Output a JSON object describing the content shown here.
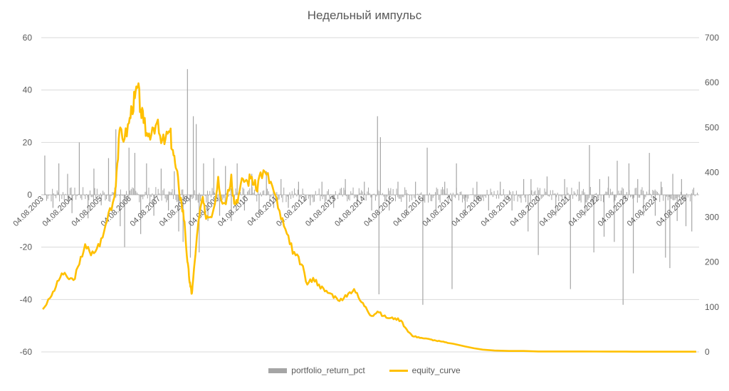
{
  "chart_data": {
    "type": "bar+line",
    "title": "Недельный импульс",
    "left_axis": {
      "min": -60,
      "max": 60,
      "step": 20,
      "ticks": [
        "60",
        "40",
        "20",
        "0",
        "-20",
        "-40",
        "-60"
      ]
    },
    "right_axis": {
      "min": 0,
      "max": 700,
      "step": 100,
      "ticks": [
        "700",
        "600",
        "500",
        "400",
        "300",
        "200",
        "100",
        "0"
      ]
    },
    "x_labels": [
      "04.08.2003",
      "04.08.2004",
      "04.08.2005",
      "04.08.2006",
      "04.08.2007",
      "04.08.2008",
      "04.08.2009",
      "04.08.2010",
      "04.08.2011",
      "04.08.2012",
      "04.08.2013",
      "04.08.2014",
      "04.08.2015",
      "04.08.2016",
      "04.08.2017",
      "04.08.2018",
      "04.08.2019",
      "04.08.2020",
      "04.08.2021",
      "04.08.2022",
      "04.08.2023",
      "04.08.2024",
      "04.08.2025"
    ],
    "grid": true,
    "legend_position": "bottom",
    "series": [
      {
        "name": "portfolio_return_pct",
        "type": "bar",
        "axis": "left",
        "color": "#a5a5a5",
        "x": [
          2003.62,
          2003.9,
          2004.1,
          2004.4,
          2004.55,
          2004.8,
          2005.1,
          2005.3,
          2005.55,
          2005.8,
          2006.05,
          2006.2,
          2006.35,
          2006.5,
          2006.7,
          2006.9,
          2007.1,
          2007.35,
          2007.6,
          2007.85,
          2008.05,
          2008.2,
          2008.35,
          2008.5,
          2008.6,
          2008.7,
          2008.8,
          2008.9,
          2009.05,
          2009.2,
          2009.4,
          2009.6,
          2009.8,
          2010.0,
          2010.2,
          2010.45,
          2010.7,
          2010.95,
          2011.2,
          2011.45,
          2011.7,
          2011.95,
          2012.3,
          2012.7,
          2013.1,
          2013.5,
          2013.9,
          2014.3,
          2014.55,
          2014.8,
          2015.0,
          2015.05,
          2015.1,
          2015.4,
          2015.7,
          2016.0,
          2016.3,
          2016.55,
          2016.7,
          2017.0,
          2017.3,
          2017.55,
          2017.7,
          2018.0,
          2018.4,
          2018.8,
          2019.2,
          2019.6,
          2020.0,
          2020.15,
          2020.25,
          2020.5,
          2020.8,
          2021.1,
          2021.4,
          2021.6,
          2021.9,
          2022.1,
          2022.25,
          2022.4,
          2022.6,
          2022.75,
          2022.9,
          2023.1,
          2023.2,
          2023.4,
          2023.6,
          2023.75,
          2023.9,
          2024.1,
          2024.3,
          2024.5,
          2024.7,
          2024.85,
          2025.0,
          2025.1,
          2025.25,
          2025.4,
          2025.55,
          2025.75
        ],
        "values": [
          15,
          -5,
          12,
          8,
          -7,
          20,
          -9,
          10,
          -4,
          14,
          25,
          -12,
          -20,
          18,
          16,
          -15,
          12,
          -8,
          10,
          -6,
          9,
          -14,
          -18,
          48,
          -24,
          30,
          27,
          -22,
          12,
          -10,
          14,
          -8,
          11,
          -10,
          12,
          -6,
          8,
          -7,
          9,
          -5,
          6,
          -5,
          5,
          -4,
          5,
          -5,
          6,
          -4,
          5,
          -6,
          30,
          -38,
          22,
          -6,
          5,
          -8,
          5,
          -42,
          18,
          -6,
          5,
          -36,
          12,
          -8,
          5,
          -6,
          5,
          -6,
          6,
          -14,
          6,
          -23,
          7,
          -8,
          6,
          -36,
          5,
          -8,
          19,
          -22,
          6,
          -16,
          7,
          -18,
          13,
          -42,
          12,
          -30,
          6,
          -8,
          16,
          -8,
          5,
          -24,
          -28,
          8,
          -10,
          6,
          -12,
          -14
        ],
        "baseline_noise": 3
      },
      {
        "name": "equity_curve",
        "type": "line",
        "axis": "right",
        "color": "#ffc000",
        "x": [
          2003.55,
          2003.8,
          2004.0,
          2004.2,
          2004.4,
          2004.6,
          2004.8,
          2005.0,
          2005.2,
          2005.4,
          2005.6,
          2005.8,
          2006.0,
          2006.1,
          2006.2,
          2006.35,
          2006.5,
          2006.6,
          2006.7,
          2006.8,
          2006.9,
          2007.0,
          2007.15,
          2007.3,
          2007.45,
          2007.6,
          2007.75,
          2007.9,
          2008.0,
          2008.1,
          2008.2,
          2008.3,
          2008.4,
          2008.5,
          2008.55,
          2008.6,
          2008.65,
          2008.7,
          2008.8,
          2008.9,
          2009.0,
          2009.1,
          2009.25,
          2009.4,
          2009.55,
          2009.7,
          2009.85,
          2010.0,
          2010.1,
          2010.25,
          2010.4,
          2010.55,
          2010.7,
          2010.85,
          2011.0,
          2011.2,
          2011.4,
          2011.6,
          2011.8,
          2012.0,
          2012.2,
          2012.4,
          2012.6,
          2012.8,
          2013.0,
          2013.2,
          2013.4,
          2013.6,
          2013.8,
          2014.0,
          2014.2,
          2014.4,
          2014.6,
          2014.8,
          2015.0,
          2015.2,
          2015.4,
          2015.6,
          2015.8,
          2016.0,
          2016.2,
          2016.4,
          2016.6,
          2016.8,
          2017.0,
          2017.2,
          2017.4,
          2017.6,
          2017.8,
          2018.0,
          2018.3,
          2018.6,
          2019.0,
          2019.5,
          2020.0,
          2020.5,
          2021.0,
          2021.5,
          2022.0,
          2022.5,
          2023.0,
          2023.5,
          2024.0,
          2024.5,
          2025.0,
          2025.5,
          2025.9
        ],
        "values": [
          95,
          120,
          145,
          175,
          165,
          160,
          195,
          240,
          215,
          230,
          255,
          310,
          345,
          420,
          500,
          475,
          510,
          545,
          565,
          590,
          540,
          510,
          480,
          500,
          510,
          465,
          475,
          490,
          450,
          410,
          370,
          330,
          290,
          200,
          170,
          145,
          130,
          165,
          240,
          300,
          340,
          310,
          300,
          320,
          390,
          330,
          345,
          395,
          330,
          350,
          385,
          380,
          390,
          360,
          400,
          395,
          370,
          320,
          280,
          240,
          215,
          195,
          150,
          165,
          150,
          135,
          130,
          120,
          115,
          130,
          140,
          115,
          100,
          80,
          90,
          80,
          75,
          75,
          70,
          50,
          35,
          33,
          30,
          28,
          25,
          23,
          20,
          18,
          15,
          12,
          8,
          5,
          3,
          2,
          2,
          1,
          1,
          1,
          1,
          0.8,
          0.7,
          0.6,
          0.5,
          0.5,
          0.4,
          0.4,
          0.4
        ]
      }
    ]
  }
}
